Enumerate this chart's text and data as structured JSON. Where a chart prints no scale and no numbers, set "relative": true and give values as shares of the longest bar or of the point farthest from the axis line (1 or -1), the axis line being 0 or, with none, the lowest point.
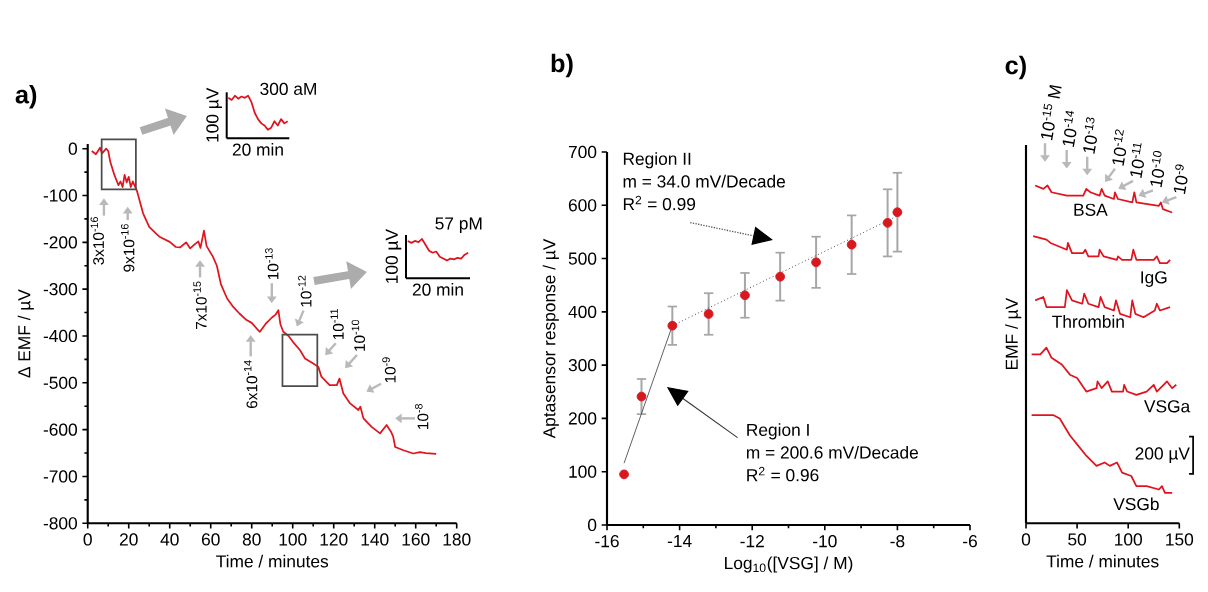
{
  "chart_data": [
    {
      "type": "line",
      "title": "a)",
      "xlabel": "Time / minutes",
      "ylabel": "Δ EMF / µV",
      "xlim": [
        0,
        180
      ],
      "xticks": [
        0,
        20,
        40,
        60,
        80,
        100,
        120,
        140,
        160,
        180
      ],
      "ylim": [
        -800,
        10
      ],
      "yticks": [
        -800,
        -700,
        -600,
        -500,
        -400,
        -300,
        -200,
        -100,
        0
      ],
      "series": [
        {
          "color": "#e0141e",
          "x": [
            2,
            4,
            6,
            7,
            9,
            10,
            11,
            13,
            15,
            16,
            17,
            18,
            19,
            20,
            21,
            22,
            24,
            27,
            30,
            33,
            35,
            40,
            43,
            45,
            48,
            50,
            52,
            54,
            55,
            56.7,
            58,
            61,
            63,
            65,
            68,
            71,
            74,
            77.5,
            80,
            83,
            84,
            87,
            90,
            91.5,
            93,
            94,
            95.4,
            98,
            100,
            103.5,
            106,
            110,
            112.5,
            114,
            118,
            121.5,
            122.8,
            124.7,
            128,
            132,
            133,
            134.5,
            138.5,
            142.6,
            145.8,
            148,
            149,
            150,
            154,
            158.8,
            162,
            165,
            170
          ],
          "values": [
            -5,
            -12,
            2,
            -10,
            0,
            -5,
            -28,
            -56,
            -78,
            -70,
            -82,
            -56,
            -72,
            -60,
            -82,
            -70,
            -90,
            -138,
            -167,
            -180,
            -188,
            -199,
            -210,
            -211,
            -200,
            -213,
            -205,
            -198,
            -212,
            -175,
            -208,
            -230,
            -250,
            -290,
            -320,
            -338,
            -352,
            -366,
            -372,
            -387,
            -391,
            -373,
            -360,
            -355,
            -345,
            -375,
            -391,
            -400,
            -412,
            -430,
            -448,
            -459,
            -466,
            -487,
            -505,
            -505,
            -491,
            -523,
            -544,
            -558,
            -551,
            -576,
            -594,
            -608,
            -590,
            -605,
            -615,
            -637,
            -644,
            -651,
            -648,
            -650,
            -652
          ]
        }
      ],
      "annotations": [
        "3x10$^{-16}$",
        "9x10$^{-16}$",
        "7x10$^{-15}$",
        "6x10$^{-14}$",
        "10$^{-13}$",
        "10$^{-12}$",
        "10$^{-11}$",
        "10$^{-10}$",
        "10$^{-9}$",
        "10$^{-8}$"
      ]
    },
    {
      "type": "line",
      "title": "300 aM",
      "xlabel": "20 min",
      "ylabel": "100 µV",
      "relative": true,
      "categories": [
        null,
        null,
        null,
        null,
        null,
        null,
        null,
        null,
        null,
        null,
        null,
        null,
        null,
        null,
        null,
        null,
        null,
        null,
        null
      ],
      "series": [
        {
          "color": "#e0141e",
          "values": [
            0.95,
            0.9,
            1,
            0.93,
            0.98,
            0.95,
            1,
            0.85,
            0.6,
            0.45,
            0.35,
            0.3,
            0.2,
            0.25,
            0.4,
            0.3,
            0.45,
            0.35,
            0.4
          ]
        }
      ]
    },
    {
      "type": "line",
      "title": "57 pM",
      "xlabel": "20 min",
      "ylabel": "100 µV",
      "relative": true,
      "categories": [
        null,
        null,
        null,
        null,
        null,
        null,
        null,
        null,
        null,
        null,
        null,
        null,
        null,
        null,
        null,
        null,
        null,
        null
      ],
      "series": [
        {
          "color": "#e0141e",
          "values": [
            0.95,
            0.9,
            0.95,
            0.92,
            1,
            0.85,
            0.7,
            0.65,
            0.68,
            0.55,
            0.5,
            0.45,
            0.5,
            0.48,
            0.52,
            0.5,
            0.6,
            0.65
          ]
        }
      ]
    },
    {
      "type": "scatter",
      "title": "b)",
      "xlabel": "Log$_{10}$([VSG] / M)",
      "ylabel": "Aptasensor response / µV",
      "xlim": [
        -16,
        -6
      ],
      "xticks": [
        -16,
        -14,
        -12,
        -10,
        -8,
        -6
      ],
      "ylim": [
        0,
        700
      ],
      "yticks": [
        0,
        100,
        200,
        300,
        400,
        500,
        600,
        700
      ],
      "series": [
        {
          "type": "scatter",
          "color": "#d7191f",
          "x": [
            -15.53,
            -15.05,
            -14.2,
            -13.2,
            -12.2,
            -11.23,
            -10.24,
            -9.26,
            -8.27,
            -8.0
          ],
          "values": [
            95,
            241,
            374,
            396,
            431,
            466,
            493,
            526,
            567,
            587
          ],
          "errors": [
            null,
            33,
            36,
            39,
            42,
            45,
            48,
            55,
            63,
            74
          ]
        },
        {
          "type": "line",
          "marker": "none",
          "line_style": "solid",
          "color": "#555555",
          "x": [
            -15.53,
            -14.2
          ],
          "values": [
            116,
            374
          ]
        },
        {
          "type": "line",
          "marker": "none",
          "line_style": "dotted",
          "color": "#333333",
          "x": [
            -14.2,
            -8.0
          ],
          "values": [
            374,
            580
          ]
        }
      ],
      "annotations": [
        "Region II",
        "m = 34.0 mV/Decade",
        "R$^{2}$  = 0.99",
        "Region I",
        "m = 200.6 mV/Decade",
        "R$^{2}$  = 0.96"
      ]
    },
    {
      "type": "line",
      "title": "c)",
      "xlabel": "Time / minutes",
      "ylabel": "EMF / µV",
      "relative": true,
      "xlim": [
        0,
        150
      ],
      "xticks": [
        0,
        50,
        100,
        150
      ],
      "series": [
        {
          "name": "BSA",
          "color": "#e0141e",
          "x": [
            9,
            17,
            21,
            25,
            40,
            56,
            59,
            63,
            72,
            74,
            77,
            86,
            87,
            90,
            104,
            106,
            108,
            130,
            132,
            134,
            143
          ],
          "values": [
            1.0,
            0.99,
            1.0,
            0.98,
            0.97,
            0.97,
            0.99,
            0.98,
            0.97,
            0.99,
            0.97,
            0.96,
            0.98,
            0.96,
            0.95,
            0.98,
            0.95,
            0.94,
            0.95,
            0.93,
            0.92
          ]
        },
        {
          "name": "IgG",
          "color": "#e0141e",
          "x": [
            7,
            20,
            24,
            40,
            41,
            45,
            56,
            58,
            61,
            71,
            72,
            76,
            89,
            90,
            94,
            103,
            105,
            108,
            125,
            128,
            131,
            138,
            141
          ],
          "values": [
            0.85,
            0.84,
            0.83,
            0.81,
            0.83,
            0.8,
            0.8,
            0.81,
            0.79,
            0.79,
            0.81,
            0.79,
            0.78,
            0.79,
            0.78,
            0.78,
            0.81,
            0.78,
            0.78,
            0.79,
            0.77,
            0.77,
            0.78
          ]
        },
        {
          "name": "Thrombin",
          "color": "#e0141e",
          "x": [
            9,
            17,
            20,
            38,
            40,
            45,
            55,
            57,
            61,
            71,
            73,
            77,
            86,
            88,
            92,
            102,
            104,
            107,
            115,
            126,
            128,
            131,
            141
          ],
          "values": [
            0.66,
            0.67,
            0.64,
            0.64,
            0.69,
            0.66,
            0.65,
            0.68,
            0.65,
            0.64,
            0.67,
            0.64,
            0.63,
            0.66,
            0.62,
            0.61,
            0.66,
            0.62,
            0.61,
            0.63,
            0.65,
            0.63,
            0.64
          ]
        },
        {
          "name": "VSGa",
          "color": "#e0141e",
          "x": [
            5.5,
            14,
            20,
            25,
            35,
            43,
            50,
            59,
            69,
            70,
            74,
            80,
            84,
            95,
            96,
            99,
            108,
            118,
            125,
            128,
            138,
            143,
            147
          ],
          "values": [
            0.5,
            0.5,
            0.52,
            0.49,
            0.47,
            0.44,
            0.43,
            0.39,
            0.4,
            0.42,
            0.4,
            0.42,
            0.39,
            0.39,
            0.41,
            0.39,
            0.38,
            0.39,
            0.41,
            0.39,
            0.42,
            0.4,
            0.41
          ]
        },
        {
          "name": "VSGb",
          "color": "#e0141e",
          "x": [
            5.5,
            17,
            27,
            33,
            43,
            51,
            59,
            69,
            77,
            82,
            89,
            94,
            103,
            108,
            118,
            130,
            133,
            136,
            143
          ],
          "values": [
            0.32,
            0.32,
            0.32,
            0.31,
            0.26,
            0.23,
            0.2,
            0.17,
            0.18,
            0.17,
            0.18,
            0.15,
            0.14,
            0.11,
            0.11,
            0.1,
            0.11,
            0.09,
            0.09
          ]
        }
      ],
      "annotations": [
        "10$^{-15}$ M",
        "10$^{-14}$",
        "10$^{-13}$",
        "10$^{-12}$",
        "10$^{-11}$",
        "10$^{-10}$",
        "10$^{-9}$",
        "200 µV"
      ]
    }
  ]
}
